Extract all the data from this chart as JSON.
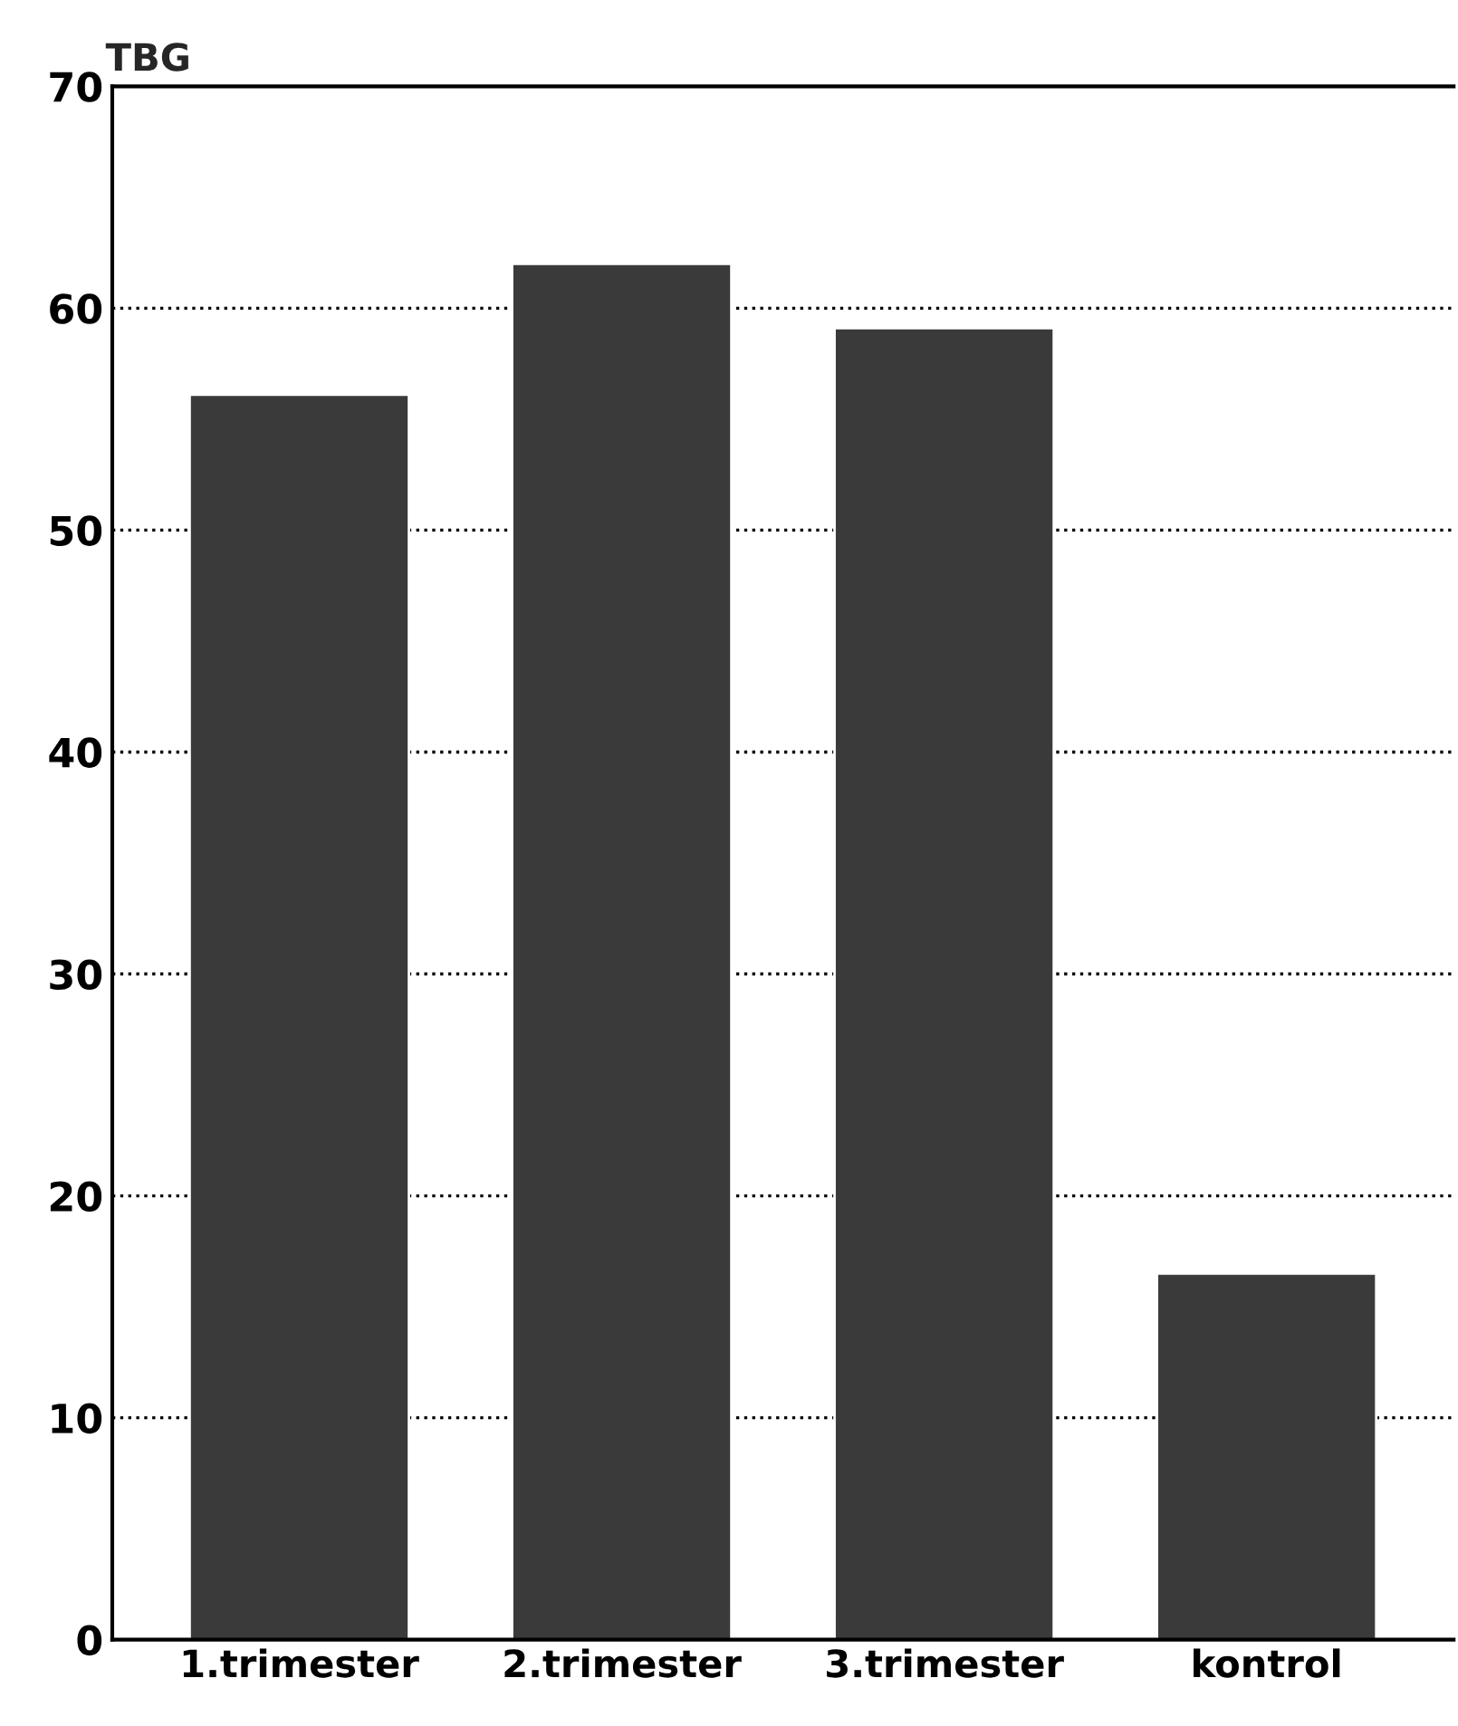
{
  "chart_data": {
    "type": "bar",
    "ylabel": "TBG",
    "categories": [
      "1.trimester",
      "2.trimester",
      "3.trimester",
      "kontrol"
    ],
    "values": [
      56.1,
      62.0,
      59.1,
      16.5
    ],
    "color": "#3a3a3a",
    "ylim": [
      0,
      70
    ],
    "yticks": [
      0,
      10,
      20,
      30,
      40,
      50,
      60,
      70
    ],
    "grid": "y",
    "line_style": "dotted"
  }
}
